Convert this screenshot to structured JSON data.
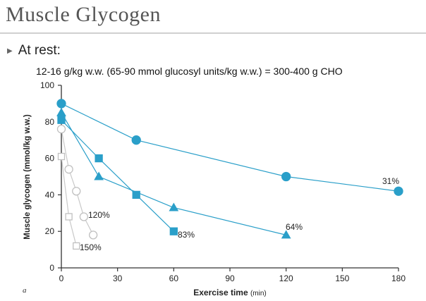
{
  "slide": {
    "title": "Muscle Glycogen",
    "bullet": "At rest:",
    "subtext": "12-16 g/kg w.w. (65-90 mmol glucosyl units/kg w.w.) = 300-400 g CHO",
    "bullet_icon": "triangle-right-icon"
  },
  "chart_data": {
    "type": "line",
    "xlabel": "Exercise time",
    "xunit": "(min)",
    "ylabel": "Muscle glycogen (mmol/kg w.w.)",
    "panel_label": "a",
    "xlim": [
      0,
      180
    ],
    "ylim": [
      0,
      100
    ],
    "xticks": [
      0,
      30,
      60,
      90,
      120,
      150,
      180
    ],
    "yticks": [
      0,
      20,
      40,
      60,
      80,
      100
    ],
    "grid": false,
    "series": [
      {
        "marker": "circle",
        "filled": true,
        "color": "#2a9fc9",
        "x": [
          0,
          40,
          120,
          180
        ],
        "y": [
          90,
          70,
          50,
          42
        ],
        "end_label": "31%"
      },
      {
        "marker": "triangle",
        "filled": true,
        "color": "#2a9fc9",
        "x": [
          0,
          20,
          60,
          120
        ],
        "y": [
          85,
          50,
          33,
          18
        ],
        "end_label": "64%"
      },
      {
        "marker": "square",
        "filled": true,
        "color": "#2a9fc9",
        "x": [
          0,
          20,
          40,
          60
        ],
        "y": [
          81,
          60,
          40,
          20
        ],
        "end_label": "83%"
      },
      {
        "marker": "circle",
        "filled": false,
        "color": "#c8c8c8",
        "x": [
          0,
          4,
          8,
          12,
          17
        ],
        "y": [
          76,
          54,
          42,
          28,
          18
        ],
        "end_label": "120%"
      },
      {
        "marker": "square",
        "filled": false,
        "color": "#c8c8c8",
        "x": [
          0,
          4,
          8
        ],
        "y": [
          61,
          28,
          12
        ],
        "end_label": "150%"
      }
    ]
  }
}
